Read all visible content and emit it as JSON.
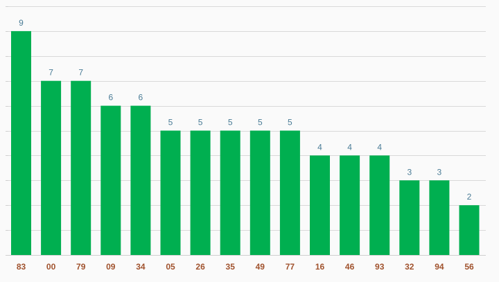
{
  "chart_data": {
    "type": "bar",
    "title": "",
    "xlabel": "",
    "ylabel": "",
    "categories": [
      "83",
      "00",
      "79",
      "09",
      "34",
      "05",
      "26",
      "35",
      "49",
      "77",
      "16",
      "46",
      "93",
      "32",
      "94",
      "56"
    ],
    "values": [
      9,
      7,
      7,
      6,
      6,
      5,
      5,
      5,
      5,
      5,
      4,
      4,
      4,
      3,
      3,
      2
    ],
    "ylim": [
      0,
      10
    ],
    "grid": true,
    "legend": "none",
    "bar_color": "#00af50",
    "value_label_color": "#4a7c96",
    "category_label_color": "#a0522d",
    "grid_color": "#d9d9d9",
    "background": "#fafafa"
  }
}
